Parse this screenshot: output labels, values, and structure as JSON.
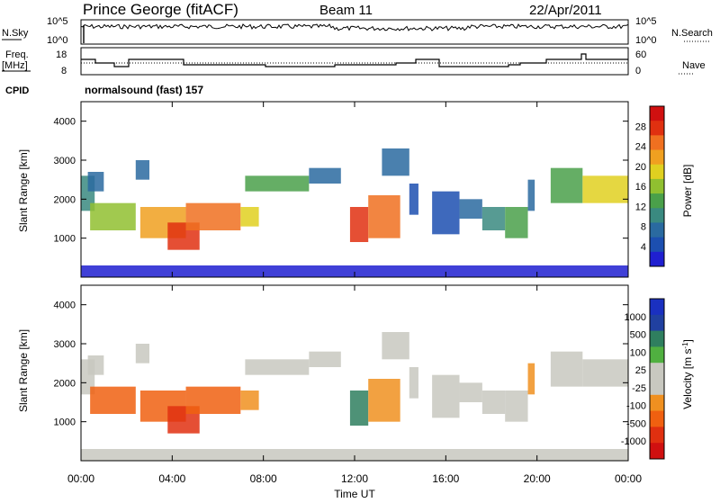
{
  "header": {
    "title": "Prince George (fitACF)",
    "beam": "Beam 11",
    "date": "22/Apr/2011"
  },
  "noise_panel": {
    "left_label": "N.Sky",
    "left_ticks": [
      "10^5",
      "10^0"
    ],
    "right_label": "N.Search",
    "right_ticks": [
      "10^5",
      "10^0"
    ]
  },
  "freq_panel": {
    "left_label_line1": "Freq.",
    "left_label_line2": "[MHz]",
    "left_ticks": [
      "18",
      "8"
    ],
    "right_label": "Nave",
    "right_ticks": [
      "60",
      "0"
    ]
  },
  "cpid": {
    "label": "CPID",
    "value": "normalsound (fast) 157"
  },
  "colors": {
    "power": [
      "#1f1fd0",
      "#1c4fb0",
      "#2a6aa0",
      "#3a8a80",
      "#4aa04a",
      "#90c030",
      "#e0d020",
      "#f0a020",
      "#f07020",
      "#e03010",
      "#d01010"
    ],
    "velocity": [
      "#1a30c0",
      "#2040a0",
      "#2f7f5f",
      "#50b040",
      "#c8c8c0",
      "#c8c8c0",
      "#f09020",
      "#f06010",
      "#e03010",
      "#d01010"
    ]
  },
  "chart_data": [
    {
      "type": "heatmap",
      "name": "power",
      "ylabel": "Slant Range [km]",
      "yticks": [
        "1000",
        "2000",
        "3000",
        "4000"
      ],
      "ylim": [
        0,
        4500
      ],
      "colorbar_label": "Power [dB]",
      "colorbar_ticks": [
        "4",
        "8",
        "12",
        "16",
        "20",
        "24",
        "28"
      ],
      "colorbar_range": [
        0,
        32
      ]
    },
    {
      "type": "heatmap",
      "name": "velocity",
      "ylabel": "Slant Range [km]",
      "yticks": [
        "1000",
        "2000",
        "3000",
        "4000"
      ],
      "ylim": [
        0,
        4500
      ],
      "colorbar_label": "Velocity [m s-1]",
      "colorbar_ticks": [
        "1000",
        "500",
        "100",
        "25",
        "-25",
        "-100",
        "-500",
        "-1000"
      ]
    }
  ],
  "x_axis": {
    "label": "Time UT",
    "ticks": [
      "00:00",
      "04:00",
      "08:00",
      "12:00",
      "16:00",
      "20:00",
      "00:00"
    ]
  }
}
